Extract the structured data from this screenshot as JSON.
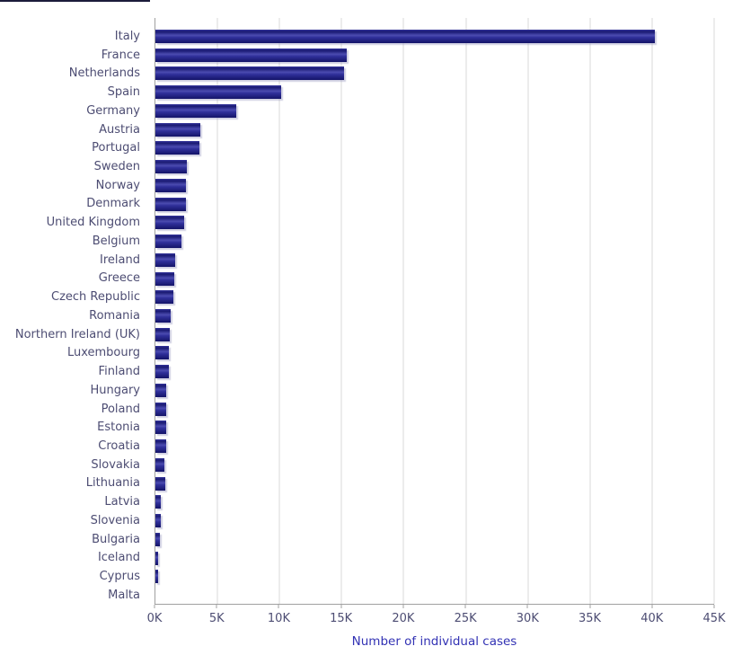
{
  "chart_data": {
    "type": "bar",
    "orientation": "horizontal",
    "title": "",
    "xlabel": "Number of individual cases",
    "ylabel": "",
    "xlim": [
      0,
      45000
    ],
    "xtick_step": 5000,
    "xtick_labels": [
      "0K",
      "5K",
      "10K",
      "15K",
      "20K",
      "25K",
      "30K",
      "35K",
      "40K",
      "45K"
    ],
    "grid": "vertical",
    "legend": "none",
    "categories": [
      "Italy",
      "France",
      "Netherlands",
      "Spain",
      "Germany",
      "Austria",
      "Portugal",
      "Sweden",
      "Norway",
      "Denmark",
      "United Kingdom",
      "Belgium",
      "Ireland",
      "Greece",
      "Czech Republic",
      "Romania",
      "Northern Ireland (UK)",
      "Luxembourg",
      "Finland",
      "Hungary",
      "Poland",
      "Estonia",
      "Croatia",
      "Slovakia",
      "Lithuania",
      "Latvia",
      "Slovenia",
      "Bulgaria",
      "Iceland",
      "Cyprus",
      "Malta"
    ],
    "values": [
      40200,
      15400,
      15200,
      10100,
      6500,
      3600,
      3550,
      2500,
      2450,
      2450,
      2300,
      2100,
      1600,
      1550,
      1450,
      1250,
      1150,
      1050,
      1050,
      900,
      900,
      850,
      850,
      700,
      800,
      400,
      400,
      350,
      230,
      200,
      0
    ]
  },
  "colors": {
    "background": "#ffffff",
    "bar_top": "#34349c",
    "bar_dark": "#1a1a72",
    "bar_highlight": "#4b4bb0",
    "bar_mid": "#30309a",
    "bar_bottom": "#141468",
    "bar_shadow": "rgba(150,150,190,0.45)",
    "category_label": "#4d4d73",
    "tick_label": "#4d4d73",
    "axis_title": "#3232b4",
    "gridline": "#d9d9d9",
    "axis_line": "#a0a0a0",
    "top_left_line": "#1b1b3a"
  }
}
